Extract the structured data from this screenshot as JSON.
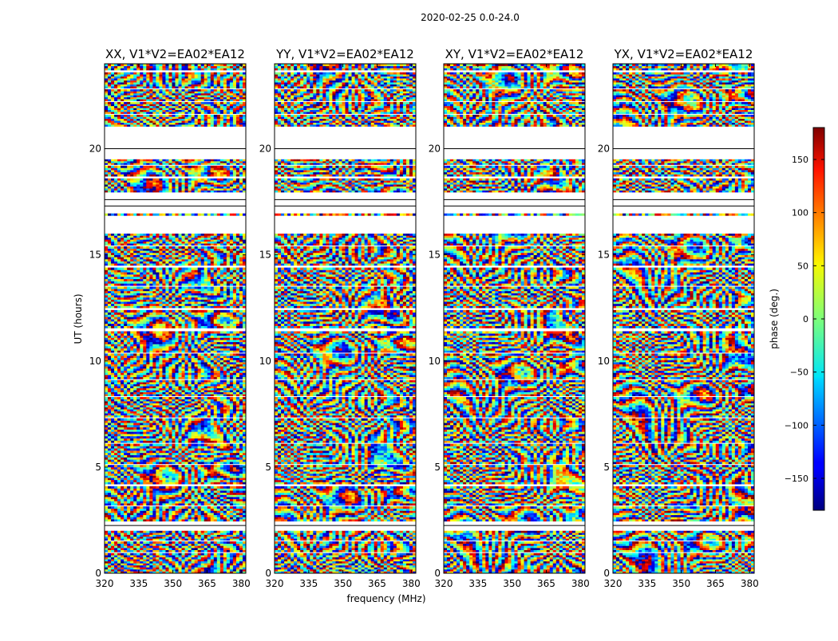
{
  "suptitle": "2020-02-25 0.0-24.0",
  "chart_data": {
    "type": "heatmap",
    "shared_xlabel": "frequency (MHz)",
    "shared_ylabel": "UT (hours)",
    "xlim": [
      320,
      382
    ],
    "ylim": [
      0,
      24
    ],
    "xticks": [
      320,
      335,
      350,
      365,
      380
    ],
    "yticks": [
      0,
      5,
      10,
      15,
      20
    ],
    "panels": [
      {
        "title": "XX, V1*V2=EA02*EA12",
        "polarization": "XX"
      },
      {
        "title": "YY, V1*V2=EA02*EA12",
        "polarization": "YY"
      },
      {
        "title": "XY, V1*V2=EA02*EA12",
        "polarization": "XY"
      },
      {
        "title": "YX, V1*V2=EA02*EA12",
        "polarization": "YX"
      }
    ],
    "data_present_ut_ranges": [
      [
        0.0,
        0.95
      ],
      [
        1.0,
        1.5
      ],
      [
        1.55,
        2.0
      ],
      [
        2.45,
        3.15
      ],
      [
        3.2,
        4.1
      ],
      [
        4.2,
        5.1
      ],
      [
        5.15,
        6.1
      ],
      [
        6.15,
        7.3
      ],
      [
        7.35,
        8.3
      ],
      [
        8.35,
        9.1
      ],
      [
        9.15,
        10.35
      ],
      [
        10.4,
        11.4
      ],
      [
        11.55,
        12.4
      ],
      [
        12.5,
        13.5
      ],
      [
        13.55,
        14.4
      ],
      [
        14.5,
        15.4
      ],
      [
        15.45,
        16.0
      ],
      [
        16.85,
        16.95
      ],
      [
        17.95,
        18.6
      ],
      [
        18.7,
        19.2
      ],
      [
        19.25,
        19.5
      ],
      [
        21.05,
        21.6
      ],
      [
        21.65,
        22.2
      ],
      [
        22.25,
        22.8
      ],
      [
        22.85,
        23.6
      ],
      [
        23.7,
        24.0
      ]
    ],
    "empty_rows_ut": [
      2.25,
      17.3,
      17.6,
      20.0
    ],
    "colorbar": {
      "label": "phase (deg.)",
      "range": [
        -180,
        180
      ],
      "ticks": [
        -150,
        -100,
        -50,
        0,
        50,
        100,
        150
      ],
      "tick_labels": [
        "−150",
        "−100",
        "−50",
        "0",
        "50",
        "100",
        "150"
      ],
      "colormap": "jet"
    }
  }
}
